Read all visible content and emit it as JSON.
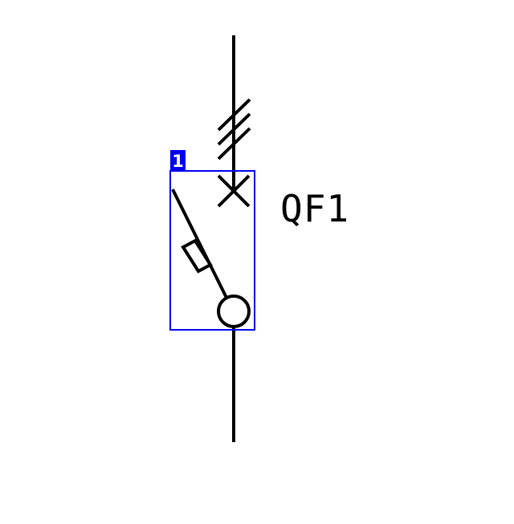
{
  "symbol": {
    "designation": "QF1",
    "selection_index": "1",
    "line_color": "#000000",
    "selection_color": "#0000ee",
    "badge_text_color": "#ffffff"
  }
}
